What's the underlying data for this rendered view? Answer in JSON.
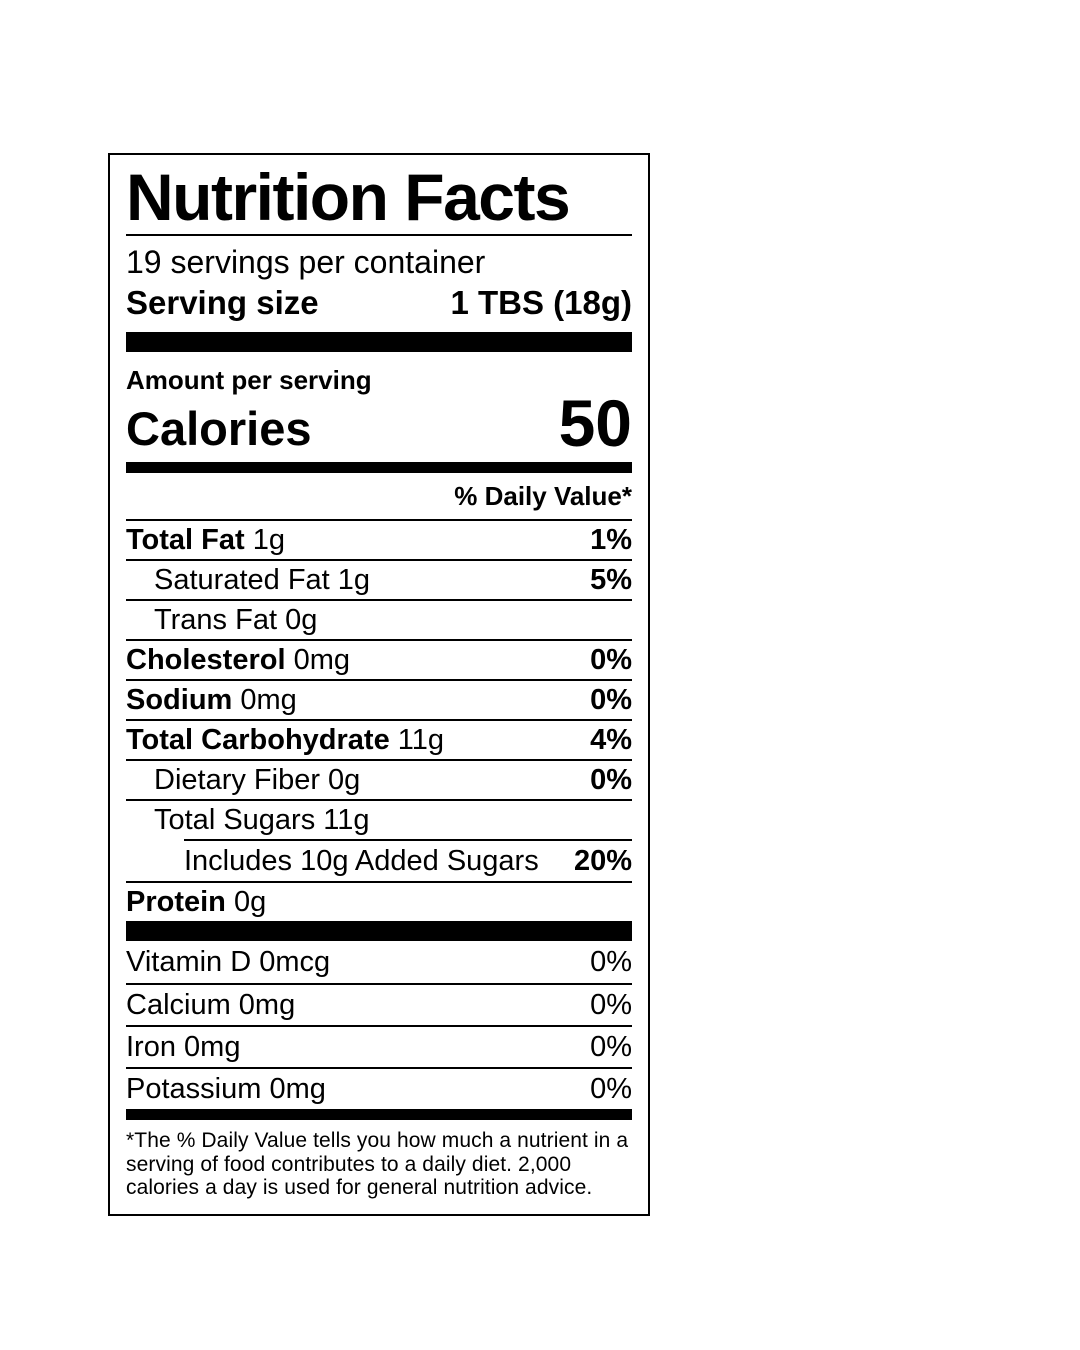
{
  "label": {
    "title": "Nutrition Facts",
    "servings_per_container": "19 servings per container",
    "serving_size_label": "Serving size",
    "serving_size_value": "1 TBS (18g)",
    "amount_per_serving": "Amount per serving",
    "calories_label": "Calories",
    "calories_value": "50",
    "daily_value_header": "% Daily Value*",
    "footnote": "*The % Daily Value tells you how much a nutrient in a serving of food contributes to a daily diet. 2,000 calories a day is used for general nutrition advice."
  },
  "nutrients": [
    {
      "name": "Total Fat",
      "amount": "1g",
      "dv": "1%",
      "bold": true,
      "indent": 0,
      "sep": "full"
    },
    {
      "name": "Saturated Fat",
      "amount": "1g",
      "dv": "5%",
      "bold": false,
      "indent": 1,
      "sep": "full"
    },
    {
      "name": "Trans Fat",
      "amount": "0g",
      "dv": "",
      "bold": false,
      "indent": 1,
      "sep": "full"
    },
    {
      "name": "Cholesterol",
      "amount": "0mg",
      "dv": "0%",
      "bold": true,
      "indent": 0,
      "sep": "full"
    },
    {
      "name": "Sodium",
      "amount": "0mg",
      "dv": "0%",
      "bold": true,
      "indent": 0,
      "sep": "full"
    },
    {
      "name": "Total Carbohydrate",
      "amount": "11g",
      "dv": "4%",
      "bold": true,
      "indent": 0,
      "sep": "full"
    },
    {
      "name": "Dietary Fiber",
      "amount": "0g",
      "dv": "0%",
      "bold": false,
      "indent": 1,
      "sep": "full"
    },
    {
      "name": "Total Sugars",
      "amount": "11g",
      "dv": "",
      "bold": false,
      "indent": 1,
      "sep": "full"
    },
    {
      "name": "Includes 10g Added Sugars",
      "amount": "",
      "dv": "20%",
      "bold": false,
      "indent": 2,
      "sep": "indent"
    },
    {
      "name": "Protein",
      "amount": "0g",
      "dv": "",
      "bold": true,
      "indent": 0,
      "sep": "full"
    }
  ],
  "vitamins": [
    {
      "name": "Vitamin D",
      "amount": "0mcg",
      "dv": "0%",
      "bold": false,
      "indent": 0,
      "sep": "none"
    },
    {
      "name": "Calcium",
      "amount": "0mg",
      "dv": "0%",
      "bold": false,
      "indent": 0,
      "sep": "full"
    },
    {
      "name": "Iron",
      "amount": "0mg",
      "dv": "0%",
      "bold": false,
      "indent": 0,
      "sep": "full"
    },
    {
      "name": "Potassium",
      "amount": "0mg",
      "dv": "0%",
      "bold": false,
      "indent": 0,
      "sep": "full"
    }
  ],
  "colors": {
    "text": "#000000",
    "background": "#ffffff",
    "rule": "#000000"
  }
}
